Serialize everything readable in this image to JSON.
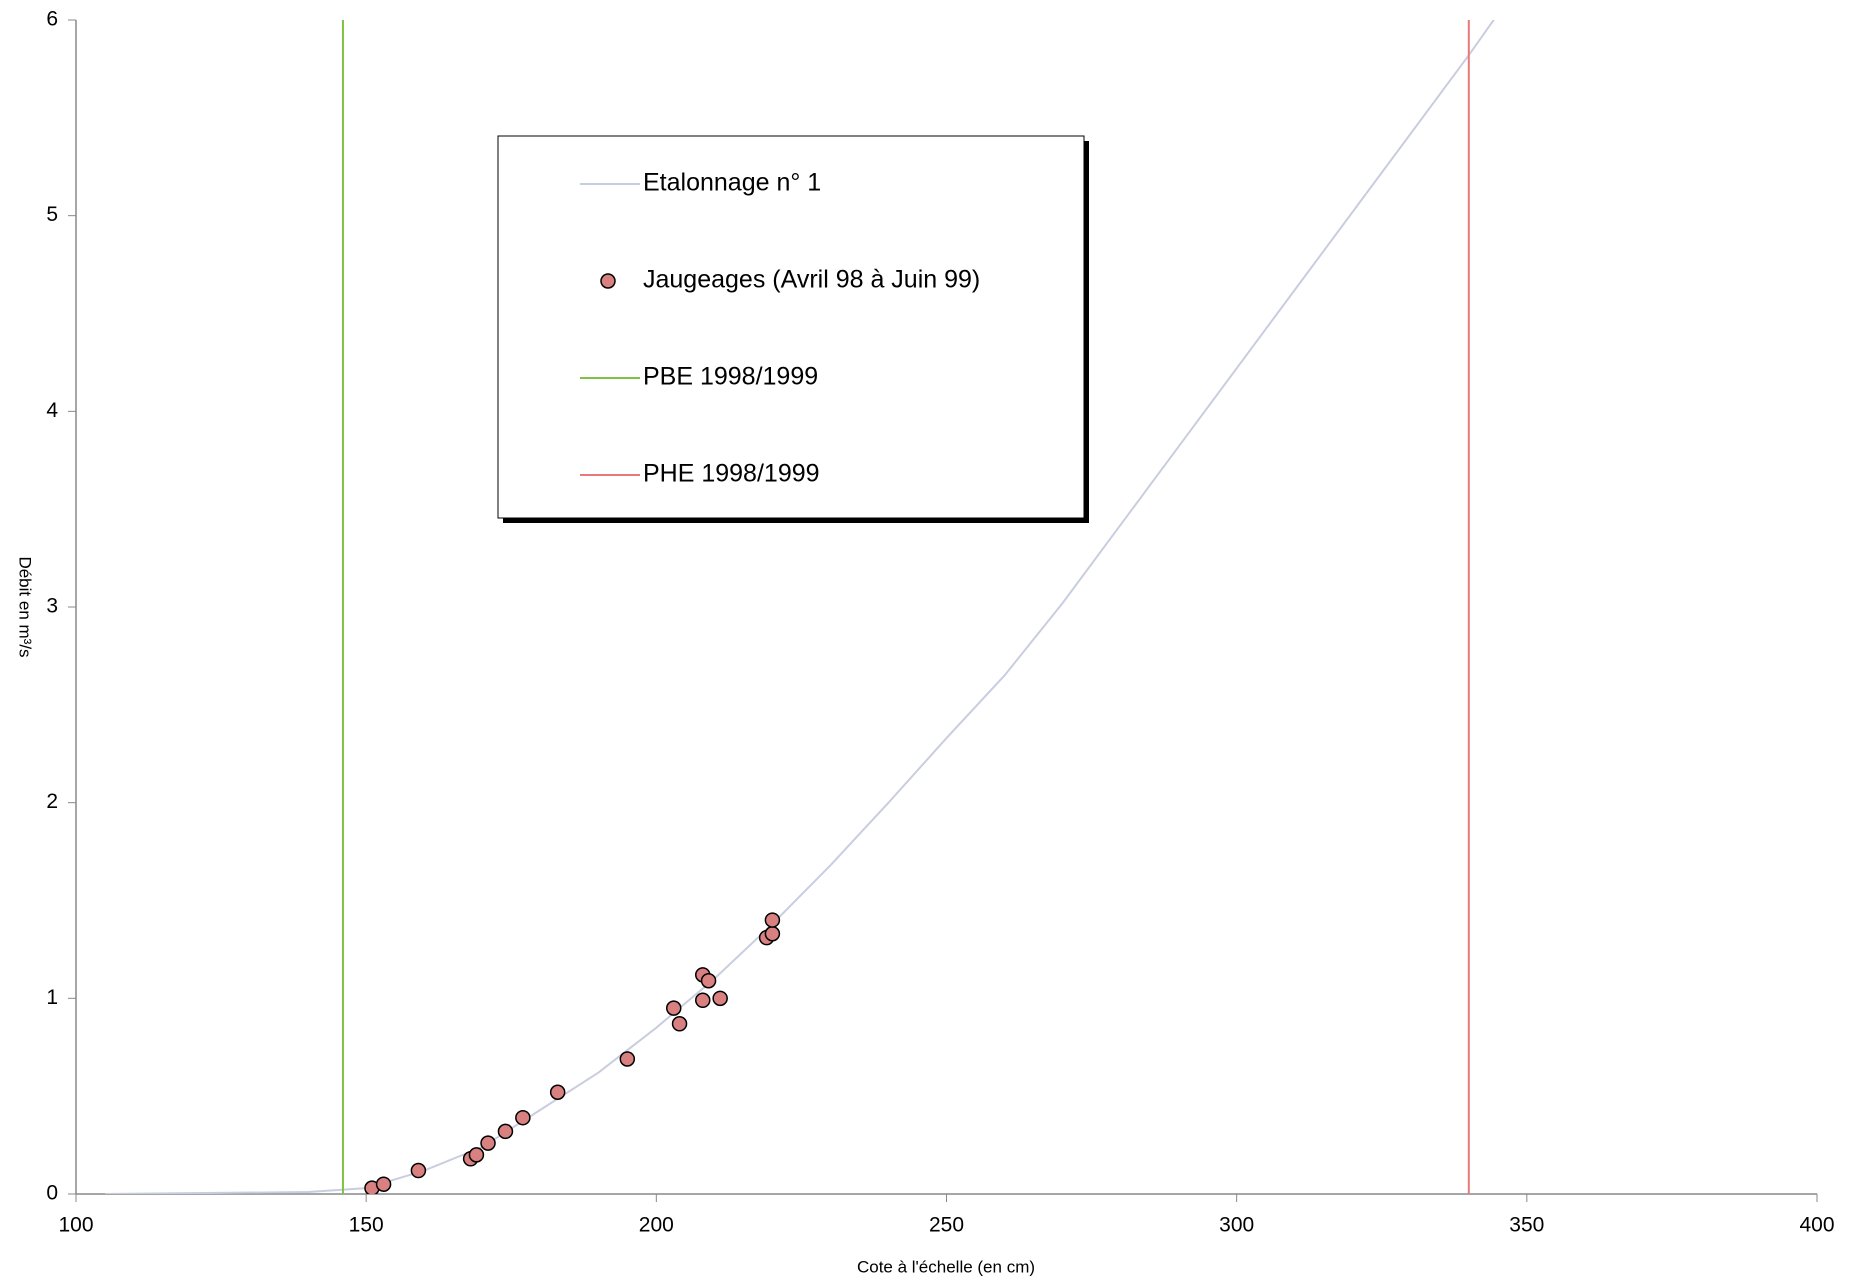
{
  "chart_data": {
    "type": "scatter",
    "xlabel": "Cote à l'échelle (en cm)",
    "ylabel": "Débit en m³/s",
    "xlim": [
      100,
      400
    ],
    "xticks": [
      100,
      150,
      200,
      250,
      300,
      350,
      400
    ],
    "ylim": [
      0,
      6
    ],
    "yticks": [
      0,
      1,
      2,
      3,
      4,
      5,
      6
    ],
    "grid": false,
    "legend": "upper center",
    "series": [
      {
        "name": "Etalonnage n° 1",
        "mode": "line",
        "color": "#c9cde0",
        "x": [
          105,
          140,
          150,
          160,
          170,
          180,
          190,
          200,
          210,
          220,
          230,
          240,
          250,
          260,
          270,
          280,
          290,
          300,
          310,
          320,
          330,
          340,
          345
        ],
        "values": [
          0,
          0.01,
          0.03,
          0.12,
          0.24,
          0.43,
          0.62,
          0.85,
          1.1,
          1.38,
          1.68,
          2.0,
          2.33,
          2.65,
          3.02,
          3.42,
          3.82,
          4.22,
          4.62,
          5.02,
          5.42,
          5.82,
          6.03
        ]
      },
      {
        "name": "Jaugeages (Avril 98 à Juin 99)",
        "mode": "markers",
        "color": "#d98080",
        "x": [
          151,
          153,
          159,
          168,
          169,
          171,
          174,
          177,
          183,
          195,
          203,
          204,
          208,
          208,
          209,
          211,
          219,
          220,
          220
        ],
        "values": [
          0.03,
          0.05,
          0.12,
          0.18,
          0.2,
          0.26,
          0.32,
          0.39,
          0.52,
          0.69,
          0.95,
          0.87,
          0.99,
          1.12,
          1.09,
          1.0,
          1.31,
          1.33,
          1.4
        ]
      },
      {
        "name": "PBE 1998/1999",
        "mode": "line",
        "color": "#7dc242",
        "x": [
          146,
          146
        ],
        "values": [
          0,
          6
        ]
      },
      {
        "name": "PHE 1998/1999",
        "mode": "line",
        "color": "#e8787a",
        "x": [
          340,
          340
        ],
        "values": [
          0,
          6
        ]
      }
    ]
  }
}
